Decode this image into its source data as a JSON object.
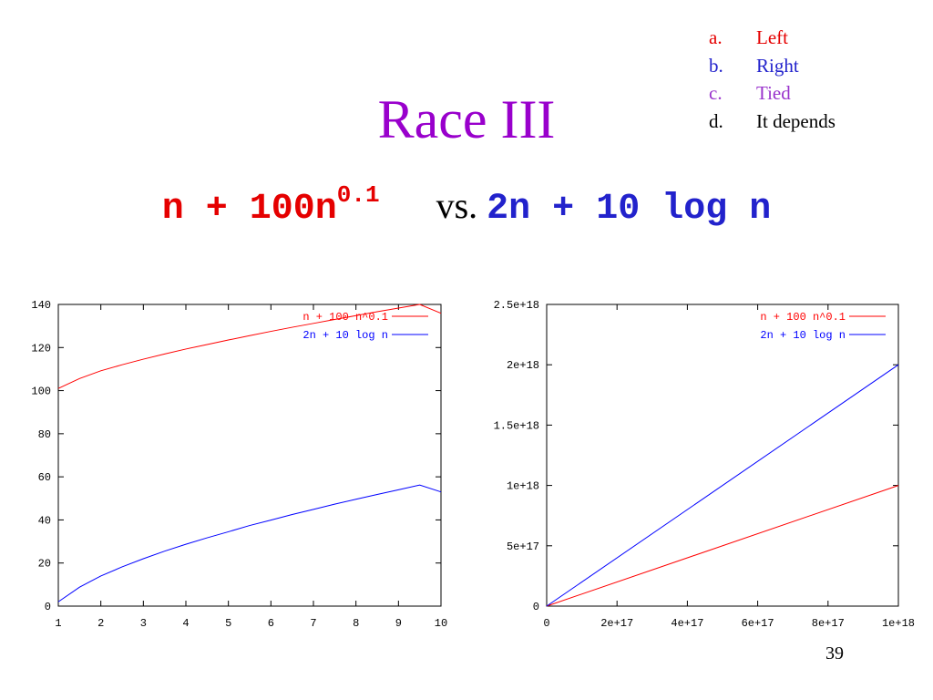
{
  "options": [
    {
      "letter": "a.",
      "text": "Left",
      "color": "#e50000"
    },
    {
      "letter": "b.",
      "text": "Right",
      "color": "#2222cc"
    },
    {
      "letter": "c.",
      "text": "Tied",
      "color": "#9933cc"
    },
    {
      "letter": "d.",
      "text": "It depends",
      "color": "#000000"
    }
  ],
  "title": "Race III",
  "subtitle": {
    "left_base": "n + 100n",
    "left_exp": "0.1",
    "vs": "vs.",
    "right": "2n + 10 log n"
  },
  "page_number": "39",
  "chart_data": [
    {
      "type": "line",
      "xlim": [
        1,
        10
      ],
      "ylim": [
        0,
        140
      ],
      "x_ticks": [
        "1",
        "2",
        "3",
        "4",
        "5",
        "6",
        "7",
        "8",
        "9",
        "10"
      ],
      "y_ticks": [
        "0",
        "20",
        "40",
        "60",
        "80",
        "100",
        "120",
        "140"
      ],
      "legend_position": "top-right",
      "grid": false,
      "series": [
        {
          "name": "n + 100 n^0.1",
          "color": "#ff0000",
          "x": [
            1,
            1.5,
            2,
            2.5,
            3,
            3.5,
            4,
            4.5,
            5,
            5.5,
            6,
            6.5,
            7,
            7.5,
            8,
            8.5,
            9,
            9.5,
            10
          ],
          "y": [
            101,
            105.6,
            109.2,
            112.0,
            114.6,
            117.0,
            119.3,
            121.4,
            123.5,
            125.5,
            127.5,
            129.4,
            131.2,
            133.0,
            134.8,
            136.6,
            138.3,
            140.0,
            135.9
          ]
        },
        {
          "name": "2n + 10 log n",
          "color": "#0000ff",
          "x": [
            1,
            1.5,
            2,
            2.5,
            3,
            3.5,
            4,
            4.5,
            5,
            5.5,
            6,
            6.5,
            7,
            7.5,
            8,
            8.5,
            9,
            9.5,
            10
          ],
          "y": [
            2,
            8.8,
            14,
            18.2,
            22,
            25.5,
            28.7,
            31.7,
            34.5,
            37.4,
            39.9,
            42.5,
            44.9,
            47.3,
            49.6,
            51.8,
            54.0,
            56.2,
            53
          ]
        }
      ]
    },
    {
      "type": "line",
      "xlim": [
        0,
        1e+18
      ],
      "ylim": [
        0,
        2.5e+18
      ],
      "x_ticks": [
        "0",
        "2e+17",
        "4e+17",
        "6e+17",
        "8e+17",
        "1e+18"
      ],
      "y_ticks": [
        "0",
        "5e+17",
        "1e+18",
        "1.5e+18",
        "2e+18",
        "2.5e+18"
      ],
      "legend_position": "top-right",
      "grid": false,
      "series": [
        {
          "name": "n + 100 n^0.1",
          "color": "#ff0000",
          "x": [
            0,
            1e+18
          ],
          "y": [
            0,
            1e+18
          ]
        },
        {
          "name": "2n + 10 log n",
          "color": "#0000ff",
          "x": [
            0,
            1e+18
          ],
          "y": [
            0,
            2e+18
          ]
        }
      ]
    }
  ]
}
